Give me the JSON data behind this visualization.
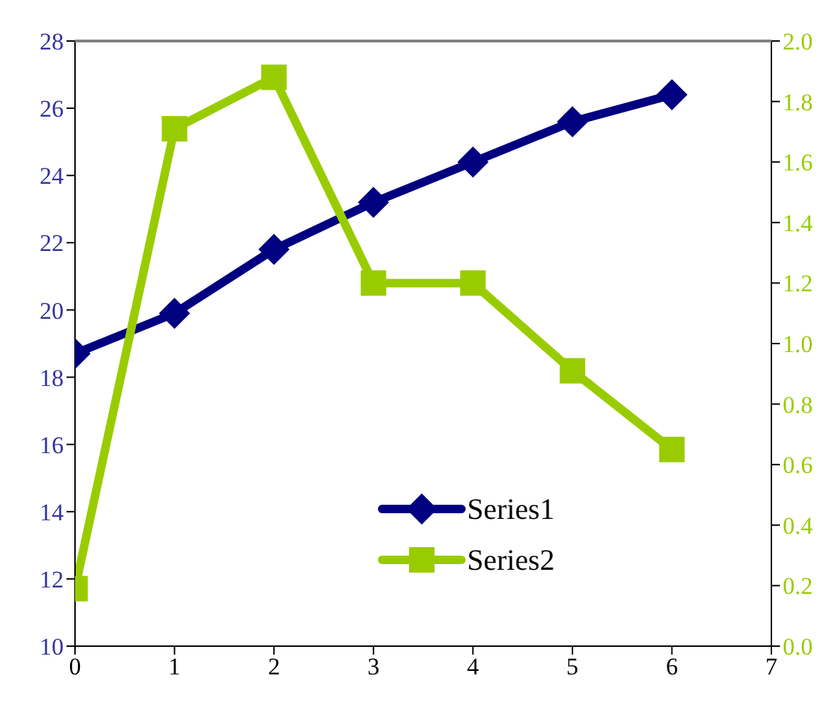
{
  "chart_data": {
    "type": "line",
    "x": [
      0,
      1,
      2,
      3,
      4,
      5,
      6
    ],
    "series": [
      {
        "name": "Series1",
        "color": "#000080",
        "marker": "diamond",
        "values": [
          18.7,
          19.9,
          21.8,
          23.2,
          24.4,
          25.6,
          26.4
        ]
      },
      {
        "name": "Series2",
        "color": "#99cc00",
        "marker": "square",
        "axis": "y2",
        "values": [
          0.19,
          1.71,
          1.88,
          1.2,
          1.2,
          0.91,
          0.65
        ]
      }
    ],
    "xlim": [
      0,
      7
    ],
    "xticks": [
      0,
      1,
      2,
      3,
      4,
      5,
      6,
      7
    ],
    "ylim": [
      10,
      28
    ],
    "yticks": [
      10,
      12,
      14,
      16,
      18,
      20,
      22,
      24,
      26,
      28
    ],
    "y2lim": [
      0,
      2
    ],
    "y2ticks": [
      {
        "value": 0,
        "label": "0.0"
      },
      {
        "value": 0.2,
        "label": "0.2"
      },
      {
        "value": 0.4,
        "label": "0.4"
      },
      {
        "value": 0.6,
        "label": "0.6"
      },
      {
        "value": 0.8,
        "label": "0.8"
      },
      {
        "value": 1,
        "label": "1.0"
      },
      {
        "value": 1.2,
        "label": "1.2"
      },
      {
        "value": 1.4,
        "label": "1.4"
      },
      {
        "value": 1.6,
        "label": "1.6"
      },
      {
        "value": 1.8,
        "label": "1.8"
      },
      {
        "value": 2,
        "label": "2.0"
      }
    ],
    "grid": false,
    "legend": "bottom right",
    "line_style": "solid"
  }
}
